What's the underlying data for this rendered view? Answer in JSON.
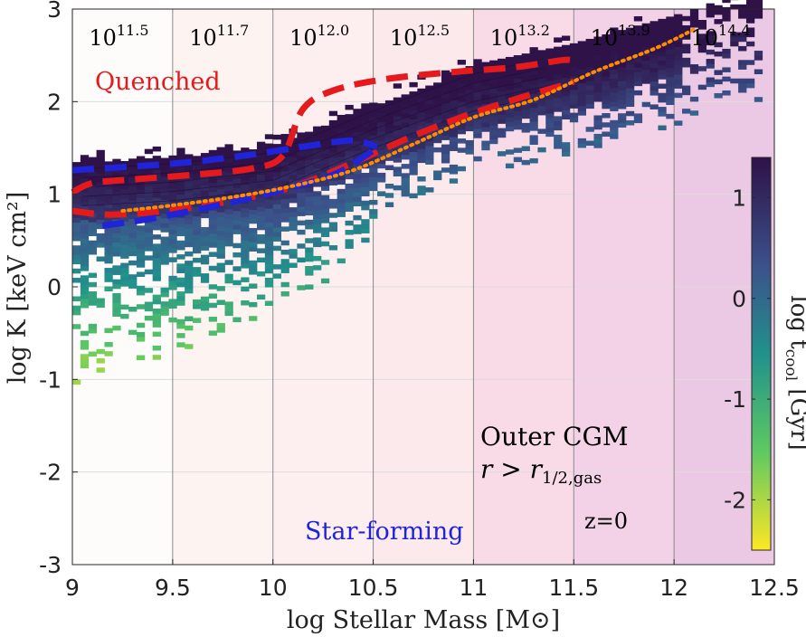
{
  "chart_data": {
    "type": "heatmap",
    "title": "",
    "xlabel": "log Stellar Mass [M⊙]",
    "ylabel": "log K [keV cm²]",
    "xlim": [
      9,
      12.5
    ],
    "ylim": [
      -3,
      3
    ],
    "xticks": [
      "9",
      "9.5",
      "10",
      "10.5",
      "11",
      "11.5",
      "12",
      "12.5"
    ],
    "yticks": [
      "3",
      "2",
      "1",
      "0",
      "-1",
      "-2",
      "-3"
    ],
    "mass_bins": [
      {
        "x0": 9.0,
        "x1": 9.5,
        "base": "10",
        "exp": "11.5",
        "shade": "#fefbfb"
      },
      {
        "x0": 9.5,
        "x1": 10.0,
        "base": "10",
        "exp": "11.7",
        "shade": "#fdf4f2"
      },
      {
        "x0": 10.0,
        "x1": 10.5,
        "base": "10",
        "exp": "12.0",
        "shade": "#fdeeef"
      },
      {
        "x0": 10.5,
        "x1": 11.0,
        "base": "10",
        "exp": "12.5",
        "shade": "#fce9ec"
      },
      {
        "x0": 11.0,
        "x1": 11.5,
        "base": "10",
        "exp": "13.2",
        "shade": "#f9dbe8"
      },
      {
        "x0": 11.5,
        "x1": 12.0,
        "base": "10",
        "exp": "13.9",
        "shade": "#f3d2e7"
      },
      {
        "x0": 12.0,
        "x1": 12.5,
        "base": "10",
        "exp": "14.4",
        "shade": "#ebc9e4"
      }
    ],
    "labels": {
      "quenched": "Quenched",
      "star_forming": "Star-forming",
      "region": "Outer CGM",
      "region_cut": "r > r",
      "region_cut_sub": "1/2,gas",
      "redshift": "z=0"
    },
    "colorbar": {
      "label": "log t",
      "label_sub": "cool",
      "label_unit": " [Gyr]",
      "range": [
        -2.5,
        1.4
      ],
      "ticks": [
        "1",
        "0",
        "-1",
        "-2"
      ]
    },
    "series": [
      {
        "name": "quenched-upper",
        "color": "#e41a1c",
        "style": "dashed",
        "x": [
          9.0,
          9.1,
          9.3,
          9.6,
          9.9,
          10.05,
          10.15,
          10.3,
          10.55,
          10.9,
          11.2,
          11.45,
          11.5
        ],
        "y": [
          1.02,
          1.12,
          1.16,
          1.21,
          1.28,
          1.42,
          1.92,
          2.12,
          2.24,
          2.32,
          2.37,
          2.45,
          2.43
        ]
      },
      {
        "name": "quenched-lower",
        "color": "#e41a1c",
        "style": "dashed",
        "x": [
          9.0,
          9.2,
          9.5,
          9.8,
          10.1,
          10.4,
          10.7,
          10.95,
          11.2,
          11.45,
          11.5
        ],
        "y": [
          0.82,
          0.78,
          0.83,
          0.93,
          1.08,
          1.34,
          1.63,
          1.84,
          2.02,
          2.18,
          2.22
        ]
      },
      {
        "name": "sf-upper",
        "color": "#1f24d9",
        "style": "dashed",
        "x": [
          9.0,
          9.3,
          9.6,
          9.9,
          10.2,
          10.4,
          10.52
        ],
        "y": [
          1.26,
          1.3,
          1.35,
          1.43,
          1.53,
          1.58,
          1.51
        ]
      },
      {
        "name": "sf-lower",
        "color": "#1f24d9",
        "style": "dashed",
        "x": [
          9.15,
          9.4,
          9.7,
          10.0,
          10.3,
          10.45,
          10.52
        ],
        "y": [
          0.66,
          0.74,
          0.87,
          1.02,
          1.21,
          1.4,
          1.51
        ]
      },
      {
        "name": "median",
        "color": "#ff8c00",
        "style": "dotted",
        "x": [
          9.25,
          9.5,
          9.8,
          10.1,
          10.4,
          10.7,
          11.0,
          11.3,
          11.6,
          11.9,
          12.1
        ],
        "y": [
          0.82,
          0.88,
          0.97,
          1.09,
          1.26,
          1.54,
          1.83,
          2.02,
          2.32,
          2.57,
          2.78
        ]
      }
    ],
    "density_ridge": {
      "x": [
        9.0,
        9.5,
        10.0,
        10.5,
        11.0,
        11.5,
        12.0,
        12.3
      ],
      "y": [
        1.02,
        1.08,
        1.2,
        1.65,
        2.05,
        2.28,
        2.58,
        2.8
      ]
    }
  }
}
